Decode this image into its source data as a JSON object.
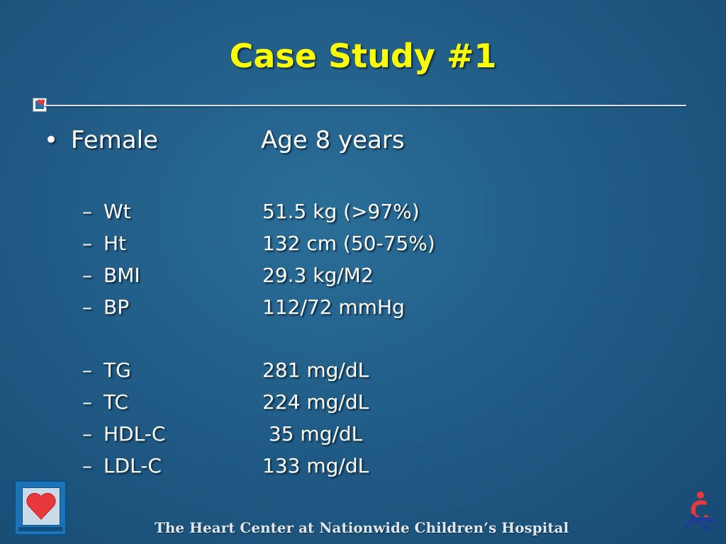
{
  "slide": {
    "title": "Case Study #1",
    "bullet": {
      "marker": "•",
      "label": "Female",
      "value": "Age 8 years"
    },
    "group1": [
      {
        "marker": "–",
        "label": "Wt",
        "value": "51.5 kg (>97%)"
      },
      {
        "marker": "–",
        "label": "Ht",
        "value": "132 cm (50-75%)"
      },
      {
        "marker": "–",
        "label": "BMI",
        "value": "29.3 kg/M2"
      },
      {
        "marker": "–",
        "label": "BP",
        "value": "112/72 mmHg"
      }
    ],
    "group2": [
      {
        "marker": "–",
        "label": "TG",
        "value": "281 mg/dL"
      },
      {
        "marker": "–",
        "label": "TC",
        "value": "224 mg/dL"
      },
      {
        "marker": "–",
        "label": "HDL-C",
        "value": " 35 mg/dL"
      },
      {
        "marker": "–",
        "label": "LDL-C",
        "value": "133 mg/dL"
      }
    ]
  },
  "footer": {
    "text": "The Heart Center at Nationwide Children’s Hospital"
  },
  "colors": {
    "title": "#ffff00",
    "body_text": "#ffffff",
    "heart": "#e8383d",
    "background": "#215d87"
  },
  "icons": {
    "rule_icon": "heart-square-icon",
    "footer_logo": "heart-monitor-logo",
    "hospital_logo": "nationwide-childrens-logo"
  }
}
